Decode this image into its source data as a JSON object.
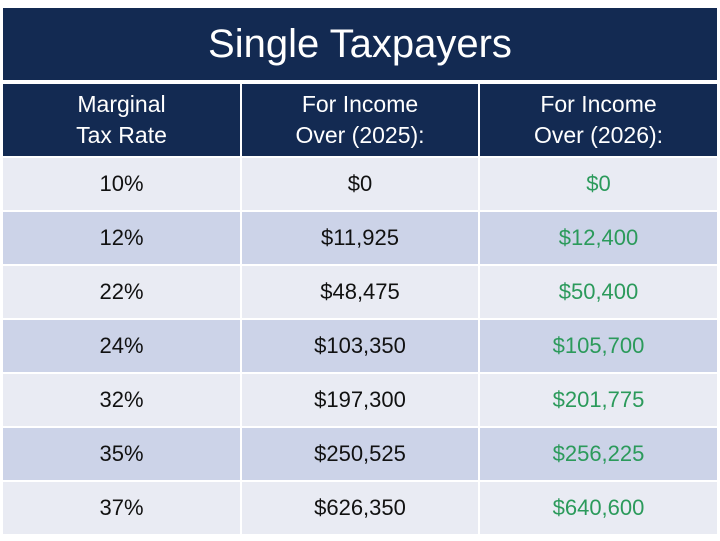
{
  "title": "Single Taxpayers",
  "headers": [
    "Marginal Tax Rate",
    "For Income Over (2025):",
    "For Income Over (2026):"
  ],
  "header_lines": [
    [
      "Marginal",
      "Tax Rate"
    ],
    [
      "For Income",
      "Over (2025):"
    ],
    [
      "For Income",
      "Over (2026):"
    ]
  ],
  "rows": [
    [
      "10%",
      "$0",
      "$0"
    ],
    [
      "12%",
      "$11,925",
      "$12,400"
    ],
    [
      "22%",
      "$48,475",
      "$50,400"
    ],
    [
      "24%",
      "$103,350",
      "$105,700"
    ],
    [
      "32%",
      "$197,300",
      "$201,775"
    ],
    [
      "35%",
      "$250,525",
      "$256,225"
    ],
    [
      "37%",
      "$626,350",
      "$640,600"
    ]
  ],
  "colors": {
    "header": "#132a52",
    "row_light": "#e9ebf3",
    "row_dark": "#ccd3e8",
    "new_value": "#2b9a5b"
  }
}
